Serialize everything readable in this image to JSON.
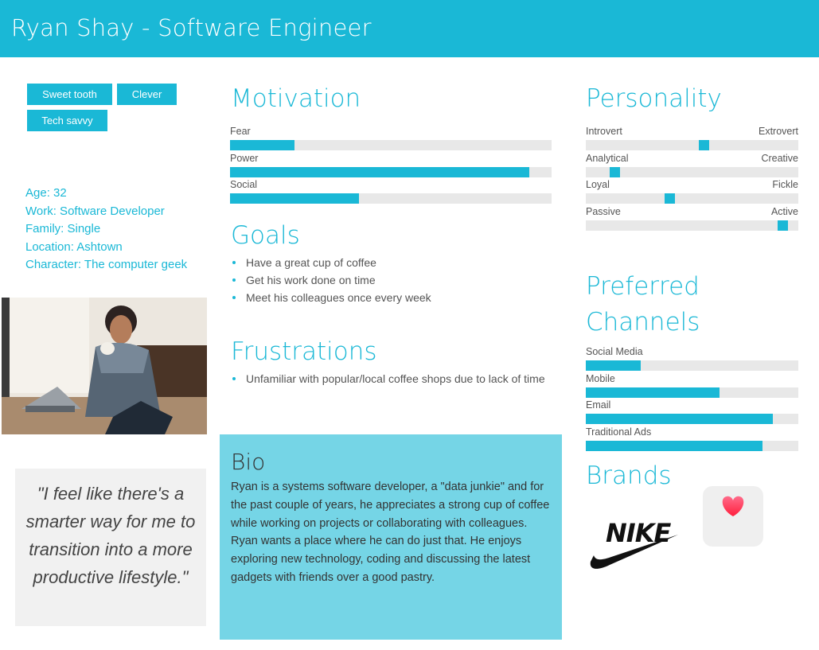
{
  "header": {
    "title": "Ryan Shay - Software Engineer"
  },
  "tags": [
    "Sweet tooth",
    "Clever",
    "Tech savvy"
  ],
  "profile": {
    "age": "Age: 32",
    "work": "Work: Software Developer",
    "family": "Family: Single",
    "location": "Location: Ashtown",
    "character": "Character: The computer geek"
  },
  "quote": "\"I feel like there's a smarter way for me to transition into a more productive lifestyle.\"",
  "motivation": {
    "title": "Motivation",
    "items": [
      {
        "label": "Fear",
        "value": 0.2
      },
      {
        "label": "Power",
        "value": 0.93
      },
      {
        "label": "Social",
        "value": 0.4
      }
    ]
  },
  "goals": {
    "title": "Goals",
    "items": [
      "Have a great cup of coffee",
      "Get his work done on time",
      "Meet his colleagues once every week"
    ]
  },
  "frustrations": {
    "title": "Frustrations",
    "items": [
      "Unfamiliar with popular/local coffee shops due to lack of time"
    ]
  },
  "bio": {
    "title": "Bio",
    "text": "Ryan is a systems software developer, a \"data junkie\" and for the past couple of years, he appreciates a strong cup of coffee while working on projects or collaborating with colleagues. Ryan wants a place where he can do just that. He enjoys exploring new technology, coding and discussing the latest gadgets with friends over a good pastry."
  },
  "personality": {
    "title": "Personality",
    "items": [
      {
        "left": "Introvert",
        "right": "Extrovert",
        "value": 0.56
      },
      {
        "left": "Analytical",
        "right": "Creative",
        "value": 0.12
      },
      {
        "left": "Loyal",
        "right": "Fickle",
        "value": 0.39
      },
      {
        "left": "Passive",
        "right": "Active",
        "value": 0.95
      }
    ]
  },
  "channels": {
    "title": "Preferred Channels",
    "items": [
      {
        "label": "Social Media",
        "value": 0.26
      },
      {
        "label": "Mobile",
        "value": 0.63
      },
      {
        "label": "Email",
        "value": 0.88
      },
      {
        "label": "Traditional Ads",
        "value": 0.83
      }
    ]
  },
  "brands": {
    "title": "Brands",
    "items": [
      "NIKE",
      "Apple Health"
    ]
  },
  "colors": {
    "accent": "#1ab8d6",
    "bio_bg": "#75d5e6",
    "track": "#e8e8e8"
  }
}
